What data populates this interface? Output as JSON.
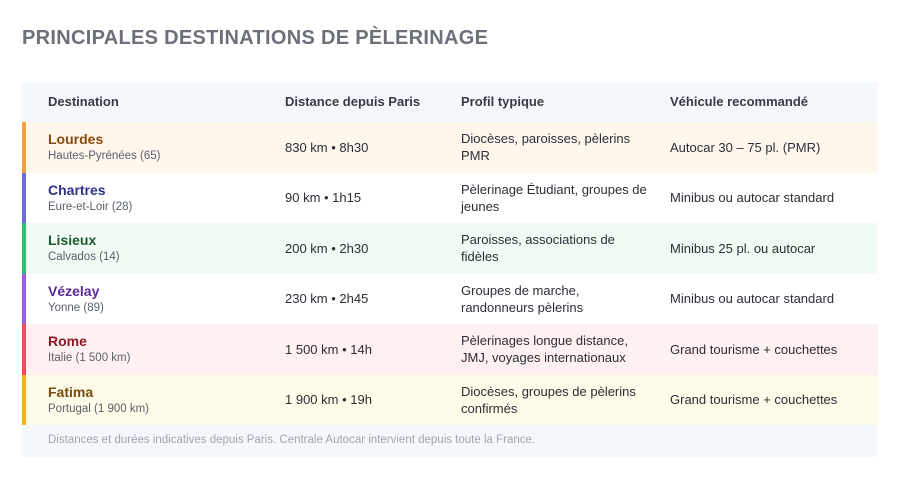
{
  "title": "PRINCIPALES DESTINATIONS DE PÈLERINAGE",
  "headers": {
    "destination": "Destination",
    "distance": "Distance depuis Paris",
    "profile": "Profil typique",
    "vehicle": "Véhicule recommandé"
  },
  "rows": [
    {
      "name": "Lourdes",
      "region": "Hautes-Pyrénées (65)",
      "distance": "830 km • 8h30",
      "profile": "Diocèses, paroisses, pèlerins PMR",
      "vehicle": "Autocar 30 – 75 pl. (PMR)",
      "accent": "#f0a23b",
      "name_color": "#8a4a0e",
      "bg": "#fff6ec"
    },
    {
      "name": "Chartres",
      "region": "Eure-et-Loir (28)",
      "distance": "90 km • 1h15",
      "profile": "Pèlerinage Étudiant, groupes de jeunes",
      "vehicle": "Minibus ou autocar standard",
      "accent": "#6a6fd8",
      "name_color": "#2e3289",
      "bg": "#ffffff"
    },
    {
      "name": "Lisieux",
      "region": "Calvados (14)",
      "distance": "200 km • 2h30",
      "profile": "Paroisses, associations de fidèles",
      "vehicle": "Minibus 25 pl. ou autocar",
      "accent": "#2fbf71",
      "name_color": "#1d5a33",
      "bg": "#f1faf3"
    },
    {
      "name": "Vézelay",
      "region": "Yonne (89)",
      "distance": "230 km • 2h45",
      "profile": "Groupes de marche, randonneurs pèlerins",
      "vehicle": "Minibus ou autocar standard",
      "accent": "#9b5de5",
      "name_color": "#5b2a9a",
      "bg": "#ffffff"
    },
    {
      "name": "Rome",
      "region": "Italie (1 500 km)",
      "distance": "1 500 km • 14h",
      "profile": "Pèlerinages longue distance, JMJ, voyages internationaux",
      "vehicle": "Grand tourisme + couchettes",
      "accent": "#ef4d5a",
      "name_color": "#8a1a24",
      "bg": "#fff0f1"
    },
    {
      "name": "Fatima",
      "region": "Portugal (1 900 km)",
      "distance": "1 900 km • 19h",
      "profile": "Diocèses, groupes de pèlerins confirmés",
      "vehicle": "Grand tourisme + couchettes",
      "accent": "#f0b429",
      "name_color": "#7a4a0a",
      "bg": "#fffbe9"
    }
  ],
  "footnote": "Distances et durées indicatives depuis Paris. Centrale Autocar intervient depuis toute la France."
}
